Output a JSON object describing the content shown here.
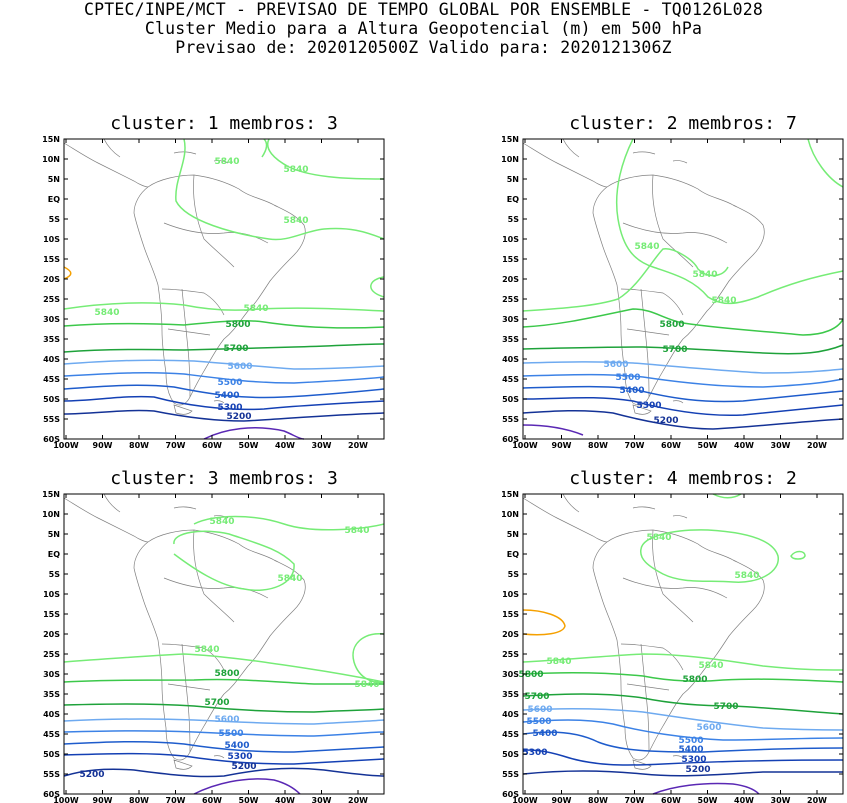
{
  "header": {
    "line1": "CPTEC/INPE/MCT - PREVISAO DE TEMPO GLOBAL POR ENSEMBLE - TQ0126L028",
    "line2": "Cluster Medio para a Altura Geopotencial (m) em 500 hPa",
    "line3": "Previsao de: 2020120500Z   Valido para: 2020121306Z"
  },
  "axes": {
    "lat_ticks": [
      "15N",
      "10N",
      "5N",
      "EQ",
      "5S",
      "10S",
      "15S",
      "20S",
      "25S",
      "30S",
      "35S",
      "40S",
      "45S",
      "50S",
      "55S",
      "60S"
    ],
    "lon_ticks": [
      "100W",
      "90W",
      "80W",
      "70W",
      "60W",
      "50W",
      "40W",
      "30W",
      "20W"
    ]
  },
  "colors": {
    "c5840": "#76ec76",
    "c5800": "#3cc84a",
    "c5700": "#1ea23a",
    "c5600": "#6eaaf0",
    "c5500": "#3c82e6",
    "c5400": "#1e5ccc",
    "c5300": "#1440b4",
    "c5200": "#143296",
    "c5100": "#5a28b4",
    "c5880": "#f5a000",
    "coast": "#808080"
  },
  "panels": [
    {
      "title": "cluster: 1  membros: 3",
      "labels": {
        "a": "5840",
        "b": "5840",
        "c": "5840",
        "d": "5840",
        "e": "5840",
        "f": "5800",
        "g": "5700",
        "h": "5600",
        "i": "5500",
        "j": "5400",
        "k": "5300",
        "l": "5200"
      }
    },
    {
      "title": "cluster: 2  membros: 7",
      "labels": {
        "a": "5840",
        "b": "5840",
        "c": "5840",
        "d": "5800",
        "e": "5700",
        "f": "5600",
        "g": "5500",
        "h": "5400",
        "i": "5300",
        "j": "5200"
      }
    },
    {
      "title": "cluster: 3  membros: 3",
      "labels": {
        "a": "5840",
        "b": "5840",
        "c": "5840",
        "d": "5840",
        "e": "5840",
        "f": "5800",
        "g": "5700",
        "h": "5600",
        "i": "5500",
        "j": "5400",
        "k": "5300",
        "l": "5200",
        "m": "5200"
      }
    },
    {
      "title": "cluster: 4  membros: 2",
      "labels": {
        "a": "5840",
        "b": "5840",
        "c": "5840",
        "d": "5840",
        "e": "5800",
        "f": "5800",
        "g": "5700",
        "h": "5700",
        "i": "5600",
        "j": "5600",
        "k": "5500",
        "l": "5500",
        "m": "5400",
        "n": "5400",
        "o": "5300",
        "p": "5300",
        "q": "5200"
      }
    }
  ]
}
